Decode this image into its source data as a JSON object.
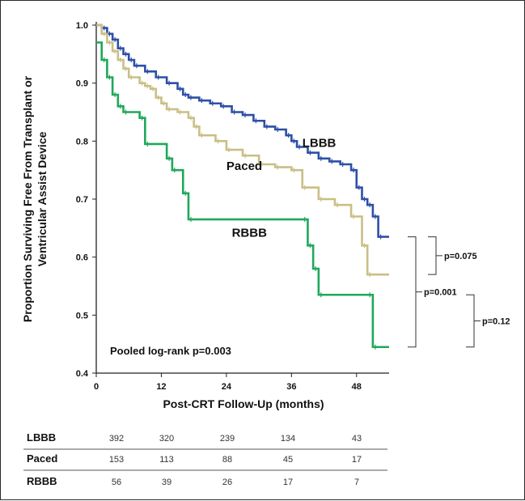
{
  "chart_data": {
    "type": "line",
    "step": true,
    "xlabel": "Post-CRT Follow-Up (months)",
    "ylabel_lines": [
      "Proportion Surviving Free From Transplant or",
      "Ventricular Assist Device"
    ],
    "xlim": [
      0,
      54
    ],
    "ylim": [
      0.4,
      1.0
    ],
    "x_ticks": [
      "0",
      "12",
      "24",
      "36",
      "48"
    ],
    "x_tick_values": [
      0,
      12,
      24,
      36,
      48
    ],
    "y_ticks": [
      "0.4",
      "0.5",
      "0.6",
      "0.7",
      "0.8",
      "0.9",
      "1.0"
    ],
    "y_tick_values": [
      0.4,
      0.5,
      0.6,
      0.7,
      0.8,
      0.9,
      1.0
    ],
    "annotation": "Pooled log-rank p=0.003",
    "series": [
      {
        "name": "LBBB",
        "color": "#2e4fa6",
        "points": [
          [
            0,
            1.0
          ],
          [
            1,
            0.995
          ],
          [
            2,
            0.985
          ],
          [
            3,
            0.975
          ],
          [
            4,
            0.96
          ],
          [
            5,
            0.95
          ],
          [
            6,
            0.94
          ],
          [
            7,
            0.93
          ],
          [
            9,
            0.92
          ],
          [
            11,
            0.91
          ],
          [
            13,
            0.9
          ],
          [
            15,
            0.89
          ],
          [
            16,
            0.88
          ],
          [
            17,
            0.875
          ],
          [
            19,
            0.87
          ],
          [
            21,
            0.865
          ],
          [
            23,
            0.86
          ],
          [
            25,
            0.85
          ],
          [
            27,
            0.845
          ],
          [
            29,
            0.835
          ],
          [
            31,
            0.825
          ],
          [
            33,
            0.82
          ],
          [
            35,
            0.81
          ],
          [
            36,
            0.8
          ],
          [
            37,
            0.79
          ],
          [
            39,
            0.78
          ],
          [
            41,
            0.77
          ],
          [
            43,
            0.765
          ],
          [
            45,
            0.76
          ],
          [
            47,
            0.75
          ],
          [
            48,
            0.72
          ],
          [
            49,
            0.7
          ],
          [
            50,
            0.69
          ],
          [
            51,
            0.67
          ],
          [
            52,
            0.635
          ],
          [
            54,
            0.635
          ]
        ],
        "label_at": [
          38,
          0.79
        ]
      },
      {
        "name": "Paced",
        "color": "#c9bf86",
        "points": [
          [
            0,
            1.0
          ],
          [
            1,
            0.985
          ],
          [
            2,
            0.97
          ],
          [
            3,
            0.955
          ],
          [
            4,
            0.94
          ],
          [
            5,
            0.925
          ],
          [
            6,
            0.91
          ],
          [
            8,
            0.9
          ],
          [
            9,
            0.895
          ],
          [
            10,
            0.89
          ],
          [
            11,
            0.875
          ],
          [
            12,
            0.865
          ],
          [
            13,
            0.855
          ],
          [
            15,
            0.85
          ],
          [
            17,
            0.84
          ],
          [
            18,
            0.825
          ],
          [
            19,
            0.81
          ],
          [
            22,
            0.8
          ],
          [
            24,
            0.785
          ],
          [
            27,
            0.775
          ],
          [
            30,
            0.76
          ],
          [
            33,
            0.755
          ],
          [
            36,
            0.75
          ],
          [
            38,
            0.72
          ],
          [
            41,
            0.7
          ],
          [
            44,
            0.69
          ],
          [
            47,
            0.67
          ],
          [
            49,
            0.62
          ],
          [
            50,
            0.57
          ],
          [
            54,
            0.57
          ]
        ],
        "label_at": [
          24,
          0.75
        ]
      },
      {
        "name": "RBBB",
        "color": "#1fa85a",
        "points": [
          [
            0,
            0.97
          ],
          [
            1,
            0.94
          ],
          [
            2,
            0.91
          ],
          [
            3,
            0.88
          ],
          [
            4,
            0.86
          ],
          [
            5,
            0.85
          ],
          [
            8,
            0.84
          ],
          [
            9,
            0.795
          ],
          [
            13,
            0.77
          ],
          [
            14,
            0.75
          ],
          [
            16,
            0.71
          ],
          [
            17,
            0.665
          ],
          [
            38,
            0.665
          ],
          [
            39,
            0.62
          ],
          [
            40,
            0.58
          ],
          [
            41,
            0.535
          ],
          [
            50,
            0.535
          ],
          [
            51,
            0.445
          ],
          [
            54,
            0.445
          ]
        ],
        "label_at": [
          25,
          0.635
        ]
      }
    ],
    "comparisons": [
      {
        "text": "p=0.075",
        "y_top": 0.635,
        "y_bottom": 0.57,
        "column": 1
      },
      {
        "text": "p=0.001",
        "y_top": 0.635,
        "y_bottom": 0.445,
        "column": 0
      },
      {
        "text": "p=0.12",
        "y_top": 0.535,
        "y_bottom": 0.445,
        "column": 2
      }
    ],
    "number_at_risk": {
      "rows": [
        {
          "label": "LBBB",
          "values": [
            "392",
            "320",
            "239",
            "134",
            "43"
          ]
        },
        {
          "label": "Paced",
          "values": [
            "153",
            "113",
            "88",
            "45",
            "17"
          ]
        },
        {
          "label": "RBBB",
          "values": [
            "56",
            "39",
            "26",
            "17",
            "7"
          ]
        }
      ]
    }
  }
}
